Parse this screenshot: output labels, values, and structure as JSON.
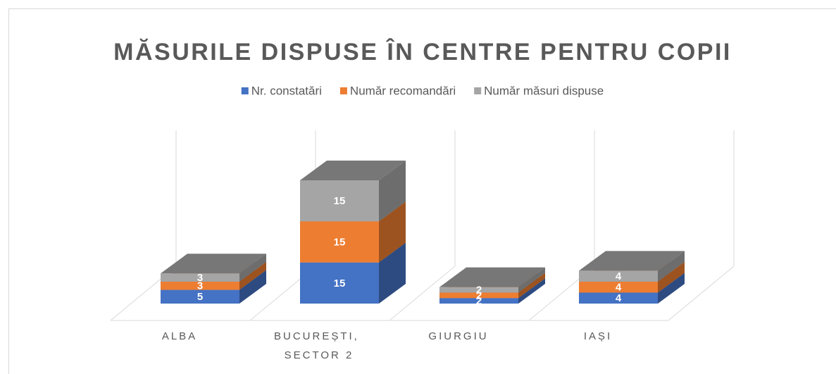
{
  "chart_data": {
    "type": "bar3d_stacked",
    "title": "MĂSURILE DISPUSE ÎN CENTRE PENTRU COPII",
    "categories": [
      "ALBA",
      "BUCUREȘTI, SECTOR 2",
      "GIURGIU",
      "IAȘI"
    ],
    "series": [
      {
        "name": "Nr. constatări",
        "color": "#4472c4",
        "values": [
          5,
          15,
          2,
          4
        ]
      },
      {
        "name": "Număr recomandări",
        "color": "#ed7d31",
        "values": [
          3,
          15,
          2,
          4
        ]
      },
      {
        "name": "Număr măsuri dispuse",
        "color": "#a5a5a5",
        "values": [
          3,
          15,
          2,
          4
        ]
      }
    ],
    "legend": "top"
  }
}
